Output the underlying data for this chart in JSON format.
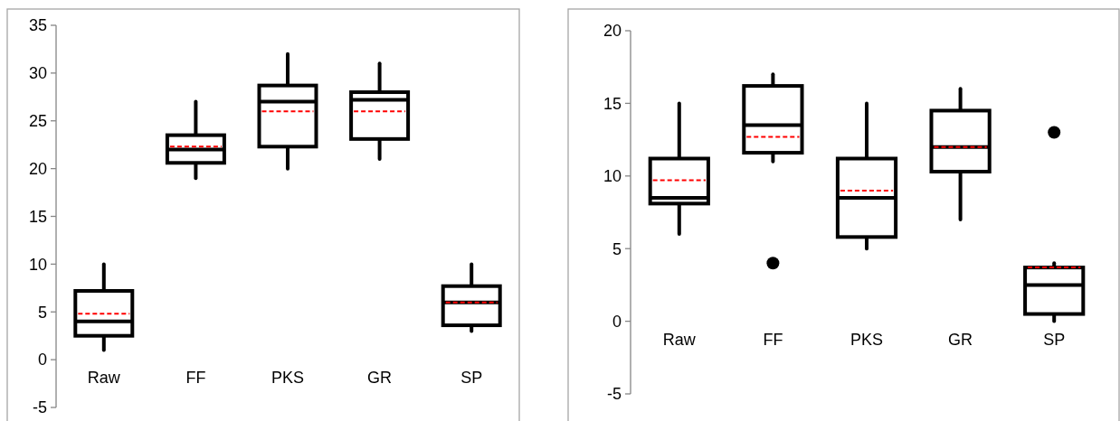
{
  "chart_data": [
    {
      "type": "box",
      "categories": [
        "Raw",
        "FF",
        "PKS",
        "GR",
        "SP"
      ],
      "ylim": [
        -5,
        35
      ],
      "yticks": [
        -5,
        0,
        5,
        10,
        15,
        20,
        25,
        30,
        35
      ],
      "series": [
        {
          "color": "#000000",
          "boxes": [
            {
              "low": 1,
              "q1": 2.5,
              "median": 4,
              "q3": 7.2,
              "high": 10,
              "mean": 4.8
            },
            {
              "low": 19,
              "q1": 20.6,
              "median": 22,
              "q3": 23.5,
              "high": 27,
              "mean": 22.3
            },
            {
              "low": 20,
              "q1": 22.3,
              "median": 27,
              "q3": 28.7,
              "high": 32,
              "mean": 26
            },
            {
              "low": 21,
              "q1": 23.1,
              "median": 27.2,
              "q3": 28,
              "high": 31,
              "mean": 26
            },
            {
              "low": 3,
              "q1": 3.6,
              "median": 6,
              "q3": 7.7,
              "high": 10,
              "mean": 6
            }
          ]
        }
      ]
    },
    {
      "type": "box",
      "categories": [
        "Raw",
        "FF",
        "PKS",
        "GR",
        "SP"
      ],
      "ylim": [
        -5,
        20
      ],
      "yticks": [
        -5,
        0,
        5,
        10,
        15,
        20
      ],
      "series": [
        {
          "color": "#000000",
          "boxes": [
            {
              "low": 6,
              "q1": 8.1,
              "median": 8.5,
              "q3": 11.2,
              "high": 15,
              "mean": 9.7
            },
            {
              "low": 11,
              "q1": 11.6,
              "median": 13.5,
              "q3": 16.2,
              "high": 17,
              "mean": 12.7,
              "outliers": [
                4
              ]
            },
            {
              "low": 5,
              "q1": 5.8,
              "median": 8.5,
              "q3": 11.2,
              "high": 15,
              "mean": 9
            },
            {
              "low": 7,
              "q1": 10.3,
              "median": 12,
              "q3": 14.5,
              "high": 16,
              "mean": 12
            },
            {
              "low": 0,
              "q1": 0.5,
              "median": 2.5,
              "q3": 3.7,
              "high": 4,
              "mean": 3.7,
              "outliers": [
                13
              ]
            }
          ]
        }
      ]
    }
  ]
}
